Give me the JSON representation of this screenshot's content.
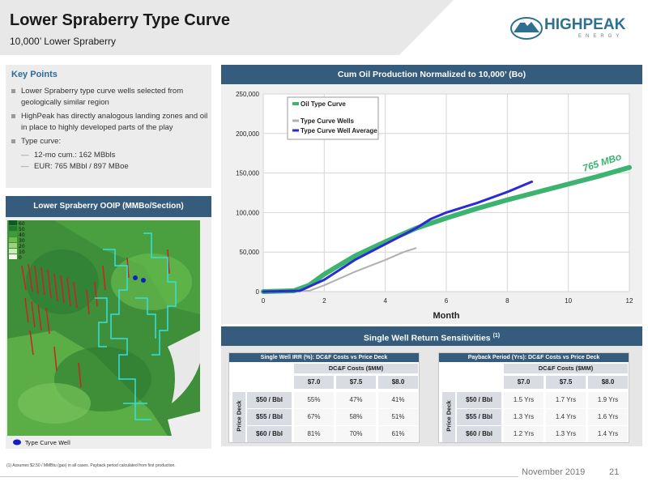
{
  "header": {
    "title": "Lower Spraberry Type Curve",
    "subtitle": "10,000’ Lower Spraberry",
    "logo_text": "HIGHPEAK",
    "logo_sub": "ENERGY"
  },
  "key_points": {
    "title": "Key Points",
    "items": [
      "Lower Spraberry type curve wells selected from geologically similar region",
      "HighPeak has directly analogous landing zones and oil in place to highly developed parts of the play",
      "Type curve:"
    ],
    "sub_items": [
      "12-mo cum.: 162 MBbls",
      "EUR: 765 MBbl / 897 MBoe"
    ]
  },
  "map": {
    "title": "Lower Spraberry OOIP (MMBo/Section)",
    "legend_values": [
      "60",
      "50",
      "40",
      "30",
      "20",
      "10",
      "0"
    ],
    "well_legend": "Type Curve Well"
  },
  "chart": {
    "title": "Cum Oil Production Normalized to 10,000’ (Bo)",
    "annotation": "765 MBo",
    "colors": {
      "type_curve": "#3cb371",
      "wells": "#b0b0b0",
      "average": "#2b2bd1"
    }
  },
  "chart_data": {
    "type": "line",
    "xlabel": "Month",
    "ylabel": "",
    "xlim": [
      0,
      12
    ],
    "ylim": [
      0,
      250000
    ],
    "x_ticks": [
      "0",
      "2",
      "4",
      "6",
      "8",
      "10",
      "12"
    ],
    "y_ticks": [
      "0",
      "50,000",
      "100,000",
      "150,000",
      "200,000",
      "250,000"
    ],
    "legend": [
      "Oil Type Curve",
      "Type Curve Wells",
      "Type Curve Well Average"
    ],
    "series": [
      {
        "name": "Oil Type Curve",
        "x": [
          0,
          1,
          1.5,
          2,
          3,
          4,
          5,
          6,
          7,
          8,
          9,
          10,
          11,
          12
        ],
        "y": [
          0,
          1000,
          8000,
          22000,
          45000,
          63000,
          80000,
          93000,
          105000,
          116000,
          126000,
          136000,
          146000,
          157000
        ]
      },
      {
        "name": "Type Curve Wells",
        "x": [
          0,
          1.5,
          2,
          3,
          4,
          4.6,
          5
        ],
        "y": [
          0,
          1000,
          8000,
          25000,
          40000,
          50000,
          55000
        ]
      },
      {
        "name": "Type Curve Well Average",
        "x": [
          0,
          1.2,
          2,
          3,
          4,
          5,
          5.5,
          6,
          7,
          8,
          8.8
        ],
        "y": [
          0,
          1000,
          15000,
          40000,
          60000,
          80000,
          92000,
          100000,
          112000,
          126000,
          139000
        ]
      }
    ]
  },
  "returns": {
    "title": "Single Well Return Sensitivities",
    "title_note": "(1)",
    "irr": {
      "title": "Single Well IRR (%): DC&F Costs vs Price Deck",
      "cost_label": "DC&F Costs ($MM)",
      "cols": [
        "$7.0",
        "$7.5",
        "$8.0"
      ],
      "rows": [
        "$50 / Bbl",
        "$55 / Bbl",
        "$60 / Bbl"
      ],
      "deck_label": "Price Deck",
      "values": [
        [
          "55%",
          "47%",
          "41%"
        ],
        [
          "67%",
          "58%",
          "51%"
        ],
        [
          "81%",
          "70%",
          "61%"
        ]
      ]
    },
    "payback": {
      "title": "Payback Period (Yrs): DC&F Costs vs Price Deck",
      "cost_label": "DC&F Costs ($MM)",
      "cols": [
        "$7.0",
        "$7.5",
        "$8.0"
      ],
      "rows": [
        "$50 / Bbl",
        "$55 / Bbl",
        "$60 / Bbl"
      ],
      "deck_label": "Price Deck",
      "values": [
        [
          "1.5 Yrs",
          "1.7 Yrs",
          "1.9 Yrs"
        ],
        [
          "1.3 Yrs",
          "1.4 Yrs",
          "1.6 Yrs"
        ],
        [
          "1.2 Yrs",
          "1.3 Yrs",
          "1.4 Yrs"
        ]
      ]
    }
  },
  "footer": {
    "footnote": "(1)    Assumes $2.50 / MMBtu (gas) in all cases. Payback period calculated from first production.",
    "date": "November 2019",
    "page": "21"
  }
}
